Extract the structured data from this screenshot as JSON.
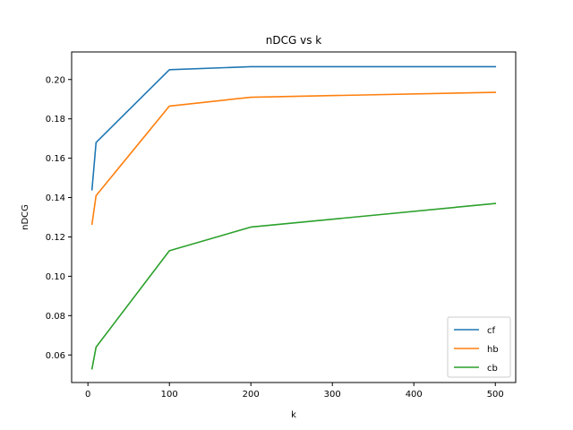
{
  "chart_data": {
    "type": "line",
    "title": "nDCG vs k",
    "xlabel": "k",
    "ylabel": "nDCG",
    "xlim": [
      -20,
      525
    ],
    "ylim": [
      0.046,
      0.214
    ],
    "xticks": [
      0,
      100,
      200,
      300,
      400,
      500
    ],
    "xtick_labels": [
      "0",
      "100",
      "200",
      "300",
      "400",
      "500"
    ],
    "yticks": [
      0.06,
      0.08,
      0.1,
      0.12,
      0.14,
      0.16,
      0.18,
      0.2
    ],
    "ytick_labels": [
      "0.06",
      "0.08",
      "0.10",
      "0.12",
      "0.14",
      "0.16",
      "0.18",
      "0.20"
    ],
    "grid": false,
    "legend_position": "lower-right",
    "x": [
      5,
      10,
      100,
      200,
      500
    ],
    "series": [
      {
        "name": "cf",
        "color": "#1f77b4",
        "values": [
          0.144,
          0.168,
          0.205,
          0.2065,
          0.2065
        ]
      },
      {
        "name": "hb",
        "color": "#ff7f0e",
        "values": [
          0.1265,
          0.141,
          0.1865,
          0.191,
          0.1935
        ]
      },
      {
        "name": "cb",
        "color": "#2ca02c",
        "values": [
          0.053,
          0.064,
          0.113,
          0.125,
          0.137
        ]
      }
    ]
  }
}
